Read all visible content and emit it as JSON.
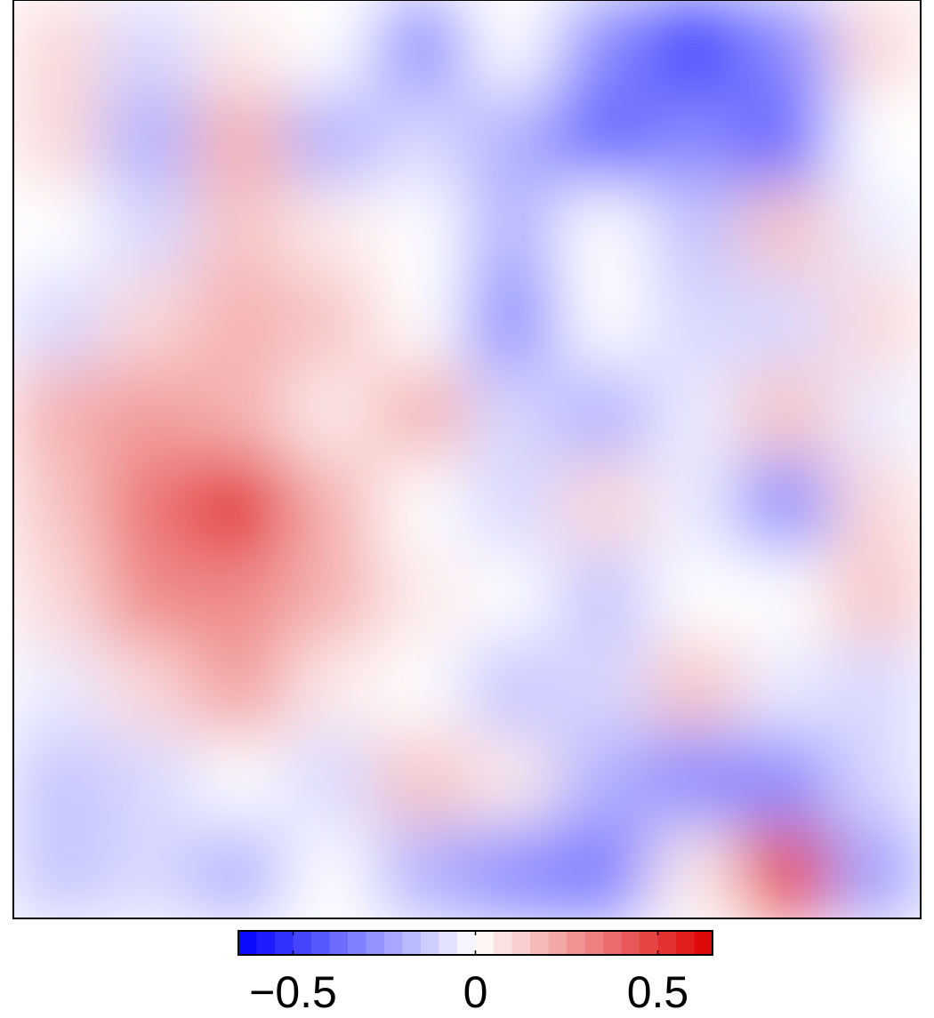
{
  "chart_data": {
    "type": "contour",
    "z": [
      [
        0.1,
        -0.1,
        0.05,
        0,
        -0.3,
        0,
        -0.3,
        -0.5,
        -0.3,
        0.1
      ],
      [
        0.1,
        -0.2,
        0.2,
        -0.2,
        -0.1,
        -0.2,
        -0.4,
        -0.3,
        -0.4,
        0
      ],
      [
        0,
        -0.1,
        0.15,
        0.05,
        0,
        -0.2,
        0,
        -0.15,
        0.15,
        -0.05
      ],
      [
        -0.1,
        0.1,
        0.2,
        0.15,
        0,
        -0.3,
        0,
        -0.1,
        -0.1,
        0.1
      ],
      [
        0.2,
        0.25,
        0.2,
        0.05,
        0.2,
        -0.1,
        -0.2,
        -0.05,
        0.15,
        -0.05
      ],
      [
        0.15,
        0.35,
        0.55,
        0.2,
        0,
        -0.1,
        0.1,
        -0.05,
        -0.3,
        0.1
      ],
      [
        0.1,
        0.3,
        0.3,
        0.2,
        0.05,
        0,
        -0.15,
        0,
        0,
        0.15
      ],
      [
        -0.05,
        0.1,
        0.25,
        0.05,
        0,
        -0.15,
        -0.1,
        0.15,
        -0.05,
        -0.1
      ],
      [
        -0.15,
        -0.1,
        0,
        -0.1,
        0.15,
        0.05,
        -0.2,
        -0.3,
        -0.3,
        -0.1
      ],
      [
        -0.15,
        -0.1,
        -0.2,
        0,
        -0.2,
        -0.3,
        -0.35,
        0.05,
        0.5,
        -0.25
      ]
    ],
    "colorbar": {
      "lim": [
        -0.65,
        0.65
      ],
      "ticks": [
        {
          "value": -0.5,
          "label": "−0.5"
        },
        0,
        0.5
      ]
    },
    "colors": {
      "low": "#0000ff",
      "mid": "#ffffff",
      "high": "#dd0000"
    }
  }
}
